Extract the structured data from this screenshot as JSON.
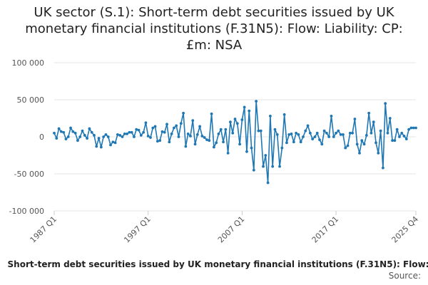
{
  "chart_data": {
    "type": "line",
    "title": "UK sector (S.1): Short-term debt securities issued by UK monetary financial institutions (F.31N5): Flow: Liability: CP: £m: NSA",
    "title_lines": [
      "UK sector (S.1): Short-term debt securities issued by UK",
      "monetary financial institutions (F.31N5): Flow: Liability: CP:",
      "£m: NSA"
    ],
    "xlabel": "",
    "ylabel": "",
    "ylim": [
      -100000,
      100000
    ],
    "yticks": [
      100000,
      50000,
      0,
      -50000,
      -100000
    ],
    "ytick_labels": [
      "100 000",
      "50 000",
      "0",
      "-50 000",
      "-100 000"
    ],
    "xtick_labels": [
      "1987 Q1",
      "1997 Q1",
      "2007 Q1",
      "2017 Q1",
      "2025 Q4"
    ],
    "grid": true,
    "series": [
      {
        "name": "Short-term debt securities issued by UK monetary financial institutions (F.31N5): Flow:",
        "color": "#1f77b4",
        "values": [
          5000,
          -2000,
          11000,
          7000,
          6000,
          -3000,
          0,
          12000,
          7000,
          5000,
          -5000,
          0,
          8000,
          2000,
          -2000,
          11000,
          6000,
          2000,
          -13000,
          -2000,
          -14000,
          0,
          3000,
          0,
          -11000,
          -7000,
          -8000,
          3000,
          2000,
          0,
          4000,
          4000,
          6000,
          6000,
          0,
          10000,
          9000,
          2000,
          6000,
          19000,
          1000,
          -1000,
          12000,
          14000,
          -6000,
          -5000,
          7000,
          6000,
          17000,
          -7000,
          4000,
          12000,
          15000,
          0,
          18000,
          32000,
          -13000,
          4000,
          1000,
          22000,
          -10000,
          3000,
          14000,
          1000,
          -1000,
          -4000,
          -5000,
          31000,
          -14000,
          -8000,
          4000,
          10000,
          -7000,
          10000,
          -22000,
          20000,
          5000,
          24000,
          18000,
          -10000,
          23000,
          40000,
          -20000,
          35000,
          -15000,
          -45000,
          48000,
          8000,
          8000,
          -40000,
          -25000,
          -62000,
          28000,
          -40000,
          10000,
          3000,
          -40000,
          -15000,
          30000,
          -8000,
          3000,
          4000,
          -7000,
          5000,
          3000,
          -7000,
          0,
          8000,
          15000,
          5000,
          -3000,
          0,
          5000,
          -4000,
          -10000,
          8000,
          5000,
          0,
          28000,
          0,
          5000,
          8000,
          3000,
          3000,
          -15000,
          -12000,
          5000,
          5000,
          24000,
          -10000,
          -22000,
          -5000,
          -10000,
          2000,
          32000,
          5000,
          20000,
          -8000,
          -22000,
          8000,
          -42000,
          45000,
          5000,
          25000,
          -5000,
          -5000,
          10000,
          0,
          5000,
          1000,
          -3000,
          10000,
          12000,
          12000,
          12000
        ]
      }
    ]
  },
  "source_label": "Source:"
}
